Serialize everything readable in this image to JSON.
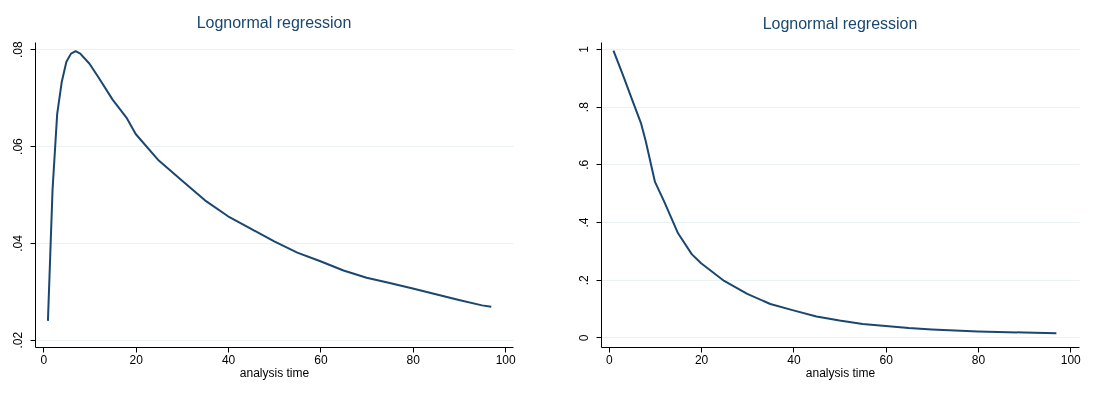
{
  "chart_data": [
    {
      "type": "line",
      "title": "Lognormal regression",
      "xlabel": "analysis time",
      "xlim": [
        -1.8,
        101.7
      ],
      "xticks": [
        0,
        20,
        40,
        60,
        80,
        100
      ],
      "ylim": [
        0.0185,
        0.0815
      ],
      "yticks": [
        {
          "value": 0.02,
          "label": ".02"
        },
        {
          "value": 0.04,
          "label": ".04"
        },
        {
          "value": 0.06,
          "label": ".06"
        },
        {
          "value": 0.08,
          "label": ".08"
        }
      ],
      "grid": "y",
      "x": [
        1,
        2,
        3,
        4,
        5,
        6,
        7,
        8,
        10,
        12,
        15,
        18,
        20,
        25,
        30,
        35,
        40,
        45,
        50,
        55,
        60,
        65,
        70,
        75,
        80,
        85,
        90,
        95,
        97
      ],
      "series": [
        {
          "color": "#1a476f",
          "values": [
            0.0239,
            0.051,
            0.0666,
            0.0733,
            0.0774,
            0.0791,
            0.0796,
            0.0791,
            0.077,
            0.0741,
            0.0696,
            0.0659,
            0.0625,
            0.057,
            0.0529,
            0.0488,
            0.0455,
            0.0429,
            0.0403,
            0.038,
            0.0362,
            0.0343,
            0.0328,
            0.0317,
            0.0306,
            0.0294,
            0.0282,
            0.0271,
            0.0268
          ]
        }
      ]
    },
    {
      "type": "line",
      "title": "Lognormal regression",
      "xlabel": "analysis time",
      "xlim": [
        -1.7,
        101.9
      ],
      "xticks": [
        0,
        20,
        40,
        60,
        80,
        100
      ],
      "ylim": [
        -0.033,
        1.024
      ],
      "yticks": [
        {
          "value": 0,
          "label": "0"
        },
        {
          "value": 0.2,
          "label": ".2"
        },
        {
          "value": 0.4,
          "label": ".4"
        },
        {
          "value": 0.6,
          "label": ".6"
        },
        {
          "value": 0.8,
          "label": ".8"
        },
        {
          "value": 1,
          "label": "1"
        }
      ],
      "grid": "y",
      "x": [
        1,
        3,
        5,
        7,
        8,
        10,
        12,
        15,
        18,
        20,
        25,
        30,
        35,
        40,
        45,
        50,
        55,
        60,
        65,
        70,
        80,
        90,
        97
      ],
      "series": [
        {
          "color": "#1a476f",
          "values": [
            0.994,
            0.912,
            0.826,
            0.741,
            0.68,
            0.539,
            0.471,
            0.361,
            0.288,
            0.257,
            0.196,
            0.151,
            0.116,
            0.094,
            0.073,
            0.059,
            0.047,
            0.04,
            0.033,
            0.028,
            0.021,
            0.017,
            0.015
          ]
        }
      ]
    }
  ]
}
